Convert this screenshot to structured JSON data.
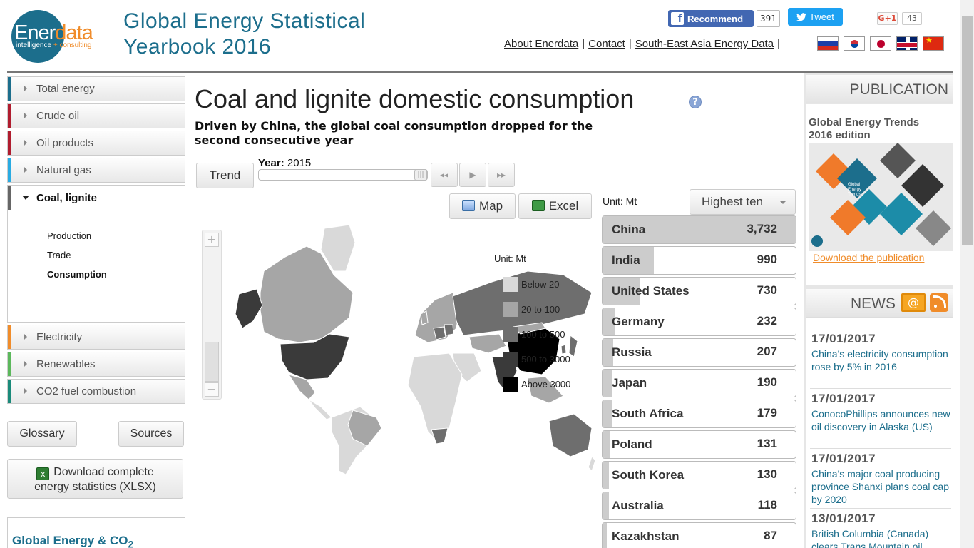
{
  "header": {
    "logo_main": "Ener",
    "logo_main2": "data",
    "logo_sub1": "intelligence",
    "logo_sub2": "+ consulting",
    "title_line1": "Global Energy Statistical",
    "title_line2": "Yearbook 2016",
    "fb_label": "Recommend",
    "fb_count": "391",
    "tweet_label": "Tweet",
    "gplus_label": "G+1",
    "gplus_count": "43",
    "links": [
      "About Enerdata",
      "Contact",
      "South-East Asia Energy Data"
    ],
    "flags": [
      "russia-flag-icon",
      "korea-flag-icon",
      "japan-flag-icon",
      "uk-flag-icon",
      "china-flag-icon"
    ]
  },
  "sidebar": {
    "items": [
      {
        "label": "Total energy",
        "color": "#1c6e8c"
      },
      {
        "label": "Crude oil",
        "color": "#b01c2e"
      },
      {
        "label": "Oil products",
        "color": "#b01c2e"
      },
      {
        "label": "Natural gas",
        "color": "#29abe2"
      },
      {
        "label": "Coal, lignite",
        "color": "#666666"
      },
      {
        "label": "Electricity",
        "color": "#f08c2a"
      },
      {
        "label": "Renewables",
        "color": "#5cb85c"
      },
      {
        "label": "CO2 fuel combustion",
        "color": "#1a8a7a"
      }
    ],
    "sub_items": [
      "Production",
      "Trade",
      "Consumption"
    ],
    "glossary": "Glossary",
    "sources": "Sources",
    "download_line1": "Download complete",
    "download_line2": "energy statistics (XLSX)",
    "ge_title": "Global Energy & CO",
    "ge_title_sub": "2"
  },
  "main": {
    "title": "Coal and lignite domestic consumption",
    "subtitle": "Driven by China, the global coal consumption dropped for the second consecutive year",
    "trend_label": "Trend",
    "year_label": "Year:",
    "year_value": "2015",
    "map_label": "Map",
    "excel_label": "Excel",
    "unit_label": "Unit: Mt",
    "select_label": "Highest ten",
    "legend": {
      "unit": "Unit: Mt",
      "rows": [
        {
          "label": "Below 20",
          "color": "#d9d9d9"
        },
        {
          "label": "20 to 100",
          "color": "#a6a6a6"
        },
        {
          "label": "100 to 500",
          "color": "#6e6e6e"
        },
        {
          "label": "500 to 3000",
          "color": "#3a3a3a"
        },
        {
          "label": "Above 3000",
          "color": "#000000"
        }
      ]
    },
    "ranking": [
      {
        "country": "China",
        "display": "3,732",
        "value": 3732
      },
      {
        "country": "India",
        "display": "990",
        "value": 990
      },
      {
        "country": "United States",
        "display": "730",
        "value": 730
      },
      {
        "country": "Germany",
        "display": "232",
        "value": 232
      },
      {
        "country": "Russia",
        "display": "207",
        "value": 207
      },
      {
        "country": "Japan",
        "display": "190",
        "value": 190
      },
      {
        "country": "South Africa",
        "display": "179",
        "value": 179
      },
      {
        "country": "Poland",
        "display": "131",
        "value": 131
      },
      {
        "country": "South Korea",
        "display": "130",
        "value": 130
      },
      {
        "country": "Australia",
        "display": "118",
        "value": 118
      },
      {
        "country": "Kazakhstan",
        "display": "87",
        "value": 87
      }
    ]
  },
  "right": {
    "publication_head": "PUBLICATION",
    "pub_title_line1": "Global Energy Trends",
    "pub_title_line2": "2016 edition",
    "pub_link": "Download the publication",
    "news_head": "NEWS",
    "news": [
      {
        "date": "17/01/2017",
        "text": "China's electricity consumption rose by 5% in 2016"
      },
      {
        "date": "17/01/2017",
        "text": "ConocoPhillips announces new oil discovery in Alaska (US)"
      },
      {
        "date": "17/01/2017",
        "text": "China's major coal producing province Shanxi plans coal cap by 2020"
      },
      {
        "date": "13/01/2017",
        "text": "British Columbia (Canada) clears Trans Mountain oil"
      }
    ]
  }
}
